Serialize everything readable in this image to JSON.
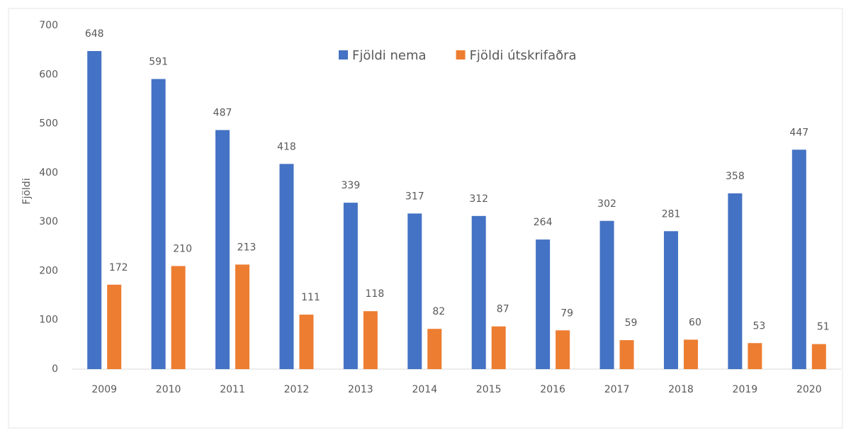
{
  "chart_data": {
    "type": "bar",
    "y_label": "Fjöldi",
    "categories": [
      "2009",
      "2010",
      "2011",
      "2012",
      "2013",
      "2014",
      "2015",
      "2016",
      "2017",
      "2018",
      "2019",
      "2020"
    ],
    "series": [
      {
        "name": "Fjöldi nema",
        "color": "#4472c4",
        "values": [
          648,
          591,
          487,
          418,
          339,
          317,
          312,
          264,
          302,
          281,
          358,
          447
        ]
      },
      {
        "name": "Fjöldi útskrifaðra",
        "color": "#ed7d31",
        "values": [
          172,
          210,
          213,
          111,
          118,
          82,
          87,
          79,
          59,
          60,
          53,
          51
        ]
      }
    ],
    "ylim": [
      0,
      700
    ],
    "yticks": [
      0,
      100,
      200,
      300,
      400,
      500,
      600,
      700
    ],
    "grid": false,
    "legend": "top",
    "data_labels": true
  }
}
